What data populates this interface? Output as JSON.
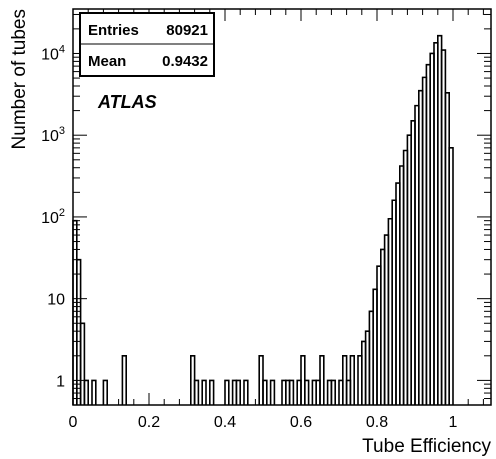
{
  "chart_data": {
    "type": "bar",
    "histogram": true,
    "title": "",
    "xlabel": "Tube Efficiency",
    "ylabel": "Number of tubes",
    "xlim": [
      0,
      1.1
    ],
    "ylim": [
      0.5,
      35000
    ],
    "y_scale": "log",
    "grid": false,
    "bin_width": 0.01,
    "x_ticks": [
      {
        "value": 0,
        "label": "0"
      },
      {
        "value": 0.2,
        "label": "0.2"
      },
      {
        "value": 0.4,
        "label": "0.4"
      },
      {
        "value": 0.6,
        "label": "0.6"
      },
      {
        "value": 0.8,
        "label": "0.8"
      },
      {
        "value": 1,
        "label": "1"
      }
    ],
    "y_ticks": [
      {
        "value": 1,
        "label": "1",
        "sup": ""
      },
      {
        "value": 10,
        "label": "10",
        "sup": ""
      },
      {
        "value": 100,
        "label": "10",
        "sup": "2"
      },
      {
        "value": 1000,
        "label": "10",
        "sup": "3"
      },
      {
        "value": 10000,
        "label": "10",
        "sup": "4"
      }
    ],
    "bins": [
      {
        "x": 0.0,
        "y": 90
      },
      {
        "x": 0.01,
        "y": 30
      },
      {
        "x": 0.02,
        "y": 5
      },
      {
        "x": 0.03,
        "y": 1
      },
      {
        "x": 0.05,
        "y": 1
      },
      {
        "x": 0.08,
        "y": 1
      },
      {
        "x": 0.13,
        "y": 2
      },
      {
        "x": 0.31,
        "y": 2
      },
      {
        "x": 0.32,
        "y": 1
      },
      {
        "x": 0.34,
        "y": 1
      },
      {
        "x": 0.36,
        "y": 1
      },
      {
        "x": 0.4,
        "y": 1
      },
      {
        "x": 0.42,
        "y": 1
      },
      {
        "x": 0.43,
        "y": 1
      },
      {
        "x": 0.45,
        "y": 1
      },
      {
        "x": 0.49,
        "y": 2
      },
      {
        "x": 0.5,
        "y": 1
      },
      {
        "x": 0.52,
        "y": 1
      },
      {
        "x": 0.55,
        "y": 1
      },
      {
        "x": 0.56,
        "y": 1
      },
      {
        "x": 0.57,
        "y": 1
      },
      {
        "x": 0.59,
        "y": 1
      },
      {
        "x": 0.6,
        "y": 2
      },
      {
        "x": 0.61,
        "y": 1
      },
      {
        "x": 0.63,
        "y": 1
      },
      {
        "x": 0.64,
        "y": 1
      },
      {
        "x": 0.65,
        "y": 2
      },
      {
        "x": 0.67,
        "y": 1
      },
      {
        "x": 0.68,
        "y": 1
      },
      {
        "x": 0.7,
        "y": 1
      },
      {
        "x": 0.71,
        "y": 2
      },
      {
        "x": 0.72,
        "y": 1
      },
      {
        "x": 0.73,
        "y": 2
      },
      {
        "x": 0.75,
        "y": 2
      },
      {
        "x": 0.76,
        "y": 3
      },
      {
        "x": 0.77,
        "y": 4
      },
      {
        "x": 0.78,
        "y": 7
      },
      {
        "x": 0.79,
        "y": 13
      },
      {
        "x": 0.8,
        "y": 25
      },
      {
        "x": 0.81,
        "y": 40
      },
      {
        "x": 0.82,
        "y": 60
      },
      {
        "x": 0.83,
        "y": 95
      },
      {
        "x": 0.84,
        "y": 160
      },
      {
        "x": 0.85,
        "y": 260
      },
      {
        "x": 0.86,
        "y": 420
      },
      {
        "x": 0.87,
        "y": 650
      },
      {
        "x": 0.88,
        "y": 1000
      },
      {
        "x": 0.89,
        "y": 1500
      },
      {
        "x": 0.9,
        "y": 2300
      },
      {
        "x": 0.91,
        "y": 3500
      },
      {
        "x": 0.92,
        "y": 5100
      },
      {
        "x": 0.93,
        "y": 7300
      },
      {
        "x": 0.94,
        "y": 10000
      },
      {
        "x": 0.95,
        "y": 13500
      },
      {
        "x": 0.96,
        "y": 16500
      },
      {
        "x": 0.97,
        "y": 11000
      },
      {
        "x": 0.98,
        "y": 3300
      },
      {
        "x": 0.99,
        "y": 700
      }
    ],
    "legend": "top-left",
    "annotations": [
      "ATLAS"
    ]
  },
  "stats_box": {
    "rows": [
      {
        "label": "Entries",
        "value": "80921"
      },
      {
        "label": "Mean",
        "value": "0.9432"
      }
    ]
  },
  "atlas_label": "ATLAS"
}
